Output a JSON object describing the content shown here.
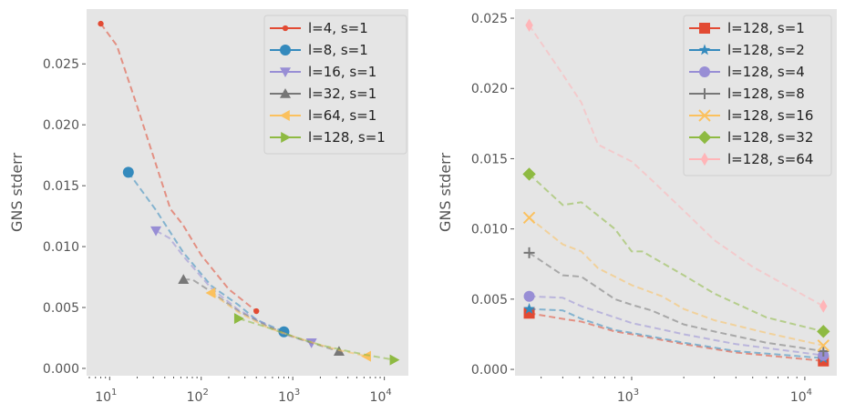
{
  "chart_data": [
    {
      "type": "line",
      "xscale": "log",
      "ylabel": "GNS stderr",
      "xlim": [
        5.6,
        18300
      ],
      "ylim": [
        -0.0006,
        0.0295
      ],
      "xticks": [
        {
          "base": "10",
          "exp": "1",
          "v": 10
        },
        {
          "base": "10",
          "exp": "2",
          "v": 100
        },
        {
          "base": "10",
          "exp": "3",
          "v": 1000
        },
        {
          "base": "10",
          "exp": "4",
          "v": 10000
        }
      ],
      "yticks": [
        "0.000",
        "0.005",
        "0.010",
        "0.015",
        "0.020",
        "0.025"
      ],
      "grid": false,
      "legend": "top-right",
      "series": [
        {
          "name": "l=4, s=1",
          "color": "#E24A33",
          "marker": "point",
          "x": [
            8,
            12,
            20,
            46,
            63,
            100,
            200,
            400
          ],
          "y": [
            0.0283,
            0.0265,
            0.0215,
            0.0131,
            0.0118,
            0.0093,
            0.0065,
            0.0047
          ]
        },
        {
          "name": "l=8, s=1",
          "color": "#348ABD",
          "marker": "circle",
          "x": [
            16,
            32,
            64,
            128,
            256,
            400,
            800
          ],
          "y": [
            0.0161,
            0.013,
            0.0095,
            0.0068,
            0.0052,
            0.004,
            0.003
          ]
        },
        {
          "name": "l=16, s=1",
          "color": "#988ED5",
          "marker": "triangle-down",
          "x": [
            32,
            45,
            64,
            128,
            256,
            512,
            800,
            1600
          ],
          "y": [
            0.0113,
            0.0107,
            0.0092,
            0.0066,
            0.0048,
            0.0036,
            0.0028,
            0.0021
          ]
        },
        {
          "name": "l=32, s=1",
          "color": "#777777",
          "marker": "triangle-up",
          "x": [
            64,
            80,
            128,
            256,
            512,
            1024,
            1600,
            3200
          ],
          "y": [
            0.0073,
            0.0073,
            0.0063,
            0.0047,
            0.0035,
            0.0026,
            0.0021,
            0.0014
          ]
        },
        {
          "name": "l=64, s=1",
          "color": "#FBC15E",
          "marker": "triangle-left",
          "x": [
            128,
            256,
            512,
            1024,
            2048,
            3200,
            6400
          ],
          "y": [
            0.0062,
            0.0046,
            0.0034,
            0.0026,
            0.0019,
            0.0015,
            0.001
          ]
        },
        {
          "name": "l=128, s=1",
          "color": "#8EBA42",
          "marker": "triangle-right",
          "x": [
            256,
            512,
            1024,
            2048,
            4096,
            6400,
            12800
          ],
          "y": [
            0.0041,
            0.0034,
            0.0026,
            0.0019,
            0.0014,
            0.0011,
            0.0007
          ]
        }
      ]
    },
    {
      "type": "line",
      "xscale": "log",
      "ylabel": "GNS stderr",
      "xlim": [
        212,
        15300
      ],
      "ylim": [
        -0.00045,
        0.02565
      ],
      "xticks": [
        {
          "base": "10",
          "exp": "3",
          "v": 1000
        },
        {
          "base": "10",
          "exp": "4",
          "v": 10000
        }
      ],
      "yticks": [
        "0.000",
        "0.005",
        "0.010",
        "0.015",
        "0.020",
        "0.025"
      ],
      "grid": false,
      "legend": "top-right",
      "series": [
        {
          "name": "l=128, s=1",
          "color": "#E24A33",
          "marker": "square",
          "x": [
            256,
            400,
            512,
            800,
            1000,
            2000,
            4000,
            12800
          ],
          "y": [
            0.004,
            0.0036,
            0.0034,
            0.0027,
            0.0025,
            0.0018,
            0.0012,
            0.0006
          ]
        },
        {
          "name": "l=128, s=2",
          "color": "#348ABD",
          "marker": "star",
          "x": [
            256,
            400,
            512,
            800,
            1000,
            2000,
            4000,
            12800
          ],
          "y": [
            0.0043,
            0.0042,
            0.0036,
            0.0028,
            0.0026,
            0.0019,
            0.0013,
            0.0008
          ]
        },
        {
          "name": "l=128, s=4",
          "color": "#988ED5",
          "marker": "hexagon",
          "x": [
            256,
            400,
            512,
            800,
            1000,
            1300,
            2000,
            4000,
            12800
          ],
          "y": [
            0.0052,
            0.0051,
            0.0045,
            0.0037,
            0.0033,
            0.003,
            0.0025,
            0.0018,
            0.001
          ]
        },
        {
          "name": "l=128, s=8",
          "color": "#777777",
          "marker": "plus",
          "x": [
            256,
            400,
            512,
            800,
            1000,
            1300,
            2000,
            3000,
            6000,
            12800
          ],
          "y": [
            0.0083,
            0.0067,
            0.0066,
            0.005,
            0.0046,
            0.0042,
            0.0032,
            0.0027,
            0.0019,
            0.0013
          ]
        },
        {
          "name": "l=128, s=16",
          "color": "#FBC15E",
          "marker": "x",
          "x": [
            256,
            400,
            512,
            640,
            1000,
            1500,
            2000,
            3000,
            6000,
            12800
          ],
          "y": [
            0.0108,
            0.0089,
            0.0084,
            0.0072,
            0.006,
            0.0052,
            0.0043,
            0.0035,
            0.0026,
            0.0017
          ]
        },
        {
          "name": "l=128, s=32",
          "color": "#8EBA42",
          "marker": "diamond",
          "x": [
            256,
            400,
            512,
            800,
            1000,
            1150,
            2000,
            3000,
            6000,
            12800
          ],
          "y": [
            0.0139,
            0.0117,
            0.0119,
            0.01,
            0.0084,
            0.0084,
            0.0067,
            0.0054,
            0.0037,
            0.0027
          ]
        },
        {
          "name": "l=128, s=64",
          "color": "#FFB5B8",
          "marker": "thin-diamond",
          "x": [
            256,
            400,
            512,
            640,
            1000,
            1300,
            2000,
            3000,
            5000,
            12800
          ],
          "y": [
            0.0245,
            0.021,
            0.019,
            0.016,
            0.0148,
            0.0135,
            0.0113,
            0.0092,
            0.0073,
            0.0045
          ]
        }
      ]
    }
  ]
}
